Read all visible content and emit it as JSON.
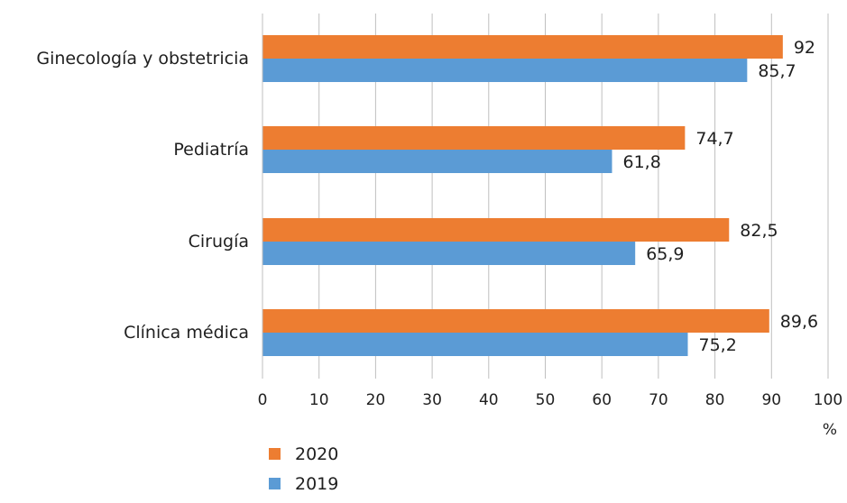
{
  "chart_data": {
    "type": "bar",
    "orientation": "horizontal",
    "categories": [
      "Ginecología y obstetricia",
      "Pediatría",
      "Cirugía",
      "Clínica médica"
    ],
    "series": [
      {
        "name": "2020",
        "color": "#ED7D31",
        "values": [
          92,
          74.7,
          82.5,
          89.6
        ],
        "labels": [
          "92",
          "74,7",
          "82,5",
          "89,6"
        ]
      },
      {
        "name": "2019",
        "color": "#5B9BD5",
        "values": [
          85.7,
          61.8,
          65.9,
          75.2
        ],
        "labels": [
          "85,7",
          "61,8",
          "65,9",
          "75,2"
        ]
      }
    ],
    "xlim": [
      0,
      100
    ],
    "xticks": [
      "0",
      "10",
      "20",
      "30",
      "40",
      "50",
      "60",
      "70",
      "80",
      "90",
      "100"
    ],
    "xunit": "%",
    "grid": true,
    "legend_position": "bottom-left",
    "title": "",
    "xlabel": "",
    "ylabel": ""
  }
}
